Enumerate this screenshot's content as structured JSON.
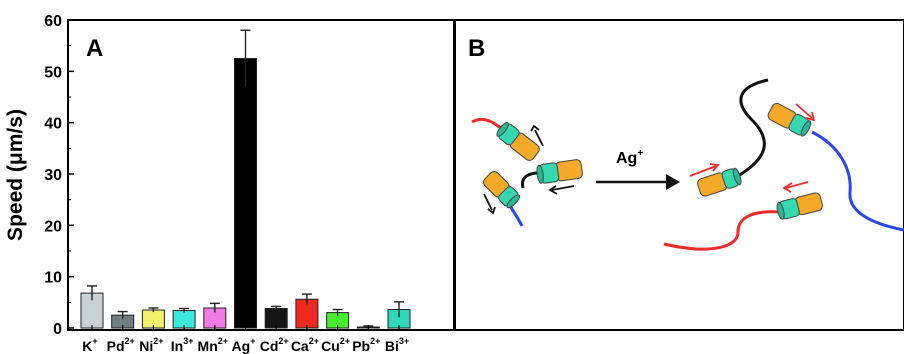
{
  "panel_a_label": "A",
  "panel_b_label": "B",
  "reaction_label": "Ag",
  "reaction_charge": "+",
  "chart_data": {
    "type": "bar",
    "title": "",
    "xlabel": "",
    "ylabel": "Speed (μm/s)",
    "ylim": [
      0,
      60
    ],
    "yticks": [
      0,
      10,
      20,
      30,
      40,
      50,
      60
    ],
    "grid": false,
    "categories": [
      {
        "ion": "K",
        "charge": "+"
      },
      {
        "ion": "Pd",
        "charge": "2+"
      },
      {
        "ion": "Ni",
        "charge": "2+"
      },
      {
        "ion": "In",
        "charge": "3+"
      },
      {
        "ion": "Mn",
        "charge": "2+"
      },
      {
        "ion": "Ag",
        "charge": "+"
      },
      {
        "ion": "Cd",
        "charge": "2+"
      },
      {
        "ion": "Ca",
        "charge": "2+"
      },
      {
        "ion": "Cu",
        "charge": "2+"
      },
      {
        "ion": "Pb",
        "charge": "2+"
      },
      {
        "ion": "Bi",
        "charge": "3+"
      }
    ],
    "values": [
      6.8,
      2.5,
      3.5,
      3.4,
      3.9,
      52.5,
      3.8,
      5.6,
      3.0,
      0.1,
      3.6
    ],
    "errors": [
      1.4,
      0.7,
      0.4,
      0.4,
      0.9,
      5.5,
      0.4,
      1.0,
      0.6,
      0.3,
      1.5
    ],
    "colors": [
      "#c8d2d2",
      "#6f7f7f",
      "#f2f26a",
      "#3ce8dc",
      "#f07ae6",
      "#000000",
      "#151515",
      "#ee2a20",
      "#44ee2c",
      "#a8a8a8",
      "#2ed8b8"
    ]
  }
}
